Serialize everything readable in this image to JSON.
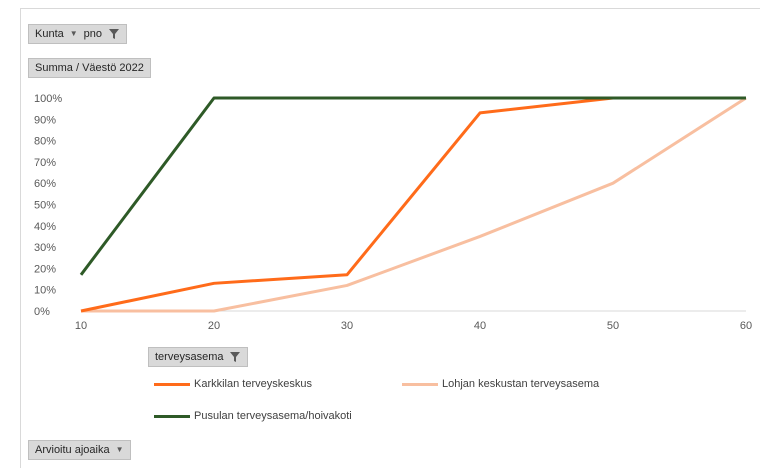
{
  "pivot": {
    "filter_row": {
      "field1": "Kunta",
      "field2": "pno"
    },
    "value_field": "Summa / Väestö 2022",
    "legend_field": "terveysasema",
    "axis_field": "Arvioitu ajoaika"
  },
  "chart_data": {
    "type": "line",
    "title": "",
    "xlabel": "",
    "ylabel": "",
    "x": [
      10,
      20,
      30,
      40,
      50,
      60
    ],
    "xticks": [
      "10",
      "20",
      "30",
      "40",
      "50",
      "60"
    ],
    "yticks": [
      "0%",
      "10%",
      "20%",
      "30%",
      "40%",
      "50%",
      "60%",
      "70%",
      "80%",
      "90%",
      "100%"
    ],
    "xlim": [
      10,
      60
    ],
    "ylim": [
      0,
      1
    ],
    "grid": false,
    "legend_position": "bottom",
    "series": [
      {
        "name": "Karkkilan terveyskeskus",
        "color": "#ff6b1a",
        "points": [
          [
            10,
            0.0
          ],
          [
            20,
            0.13
          ],
          [
            30,
            0.17
          ],
          [
            40,
            0.93
          ],
          [
            50,
            1.0
          ]
        ]
      },
      {
        "name": "Lohjan keskustan terveysasema",
        "color": "#f8bfa0",
        "points": [
          [
            10,
            0.0
          ],
          [
            20,
            0.0
          ],
          [
            30,
            0.12
          ],
          [
            40,
            0.35
          ],
          [
            50,
            0.6
          ],
          [
            60,
            1.0
          ]
        ]
      },
      {
        "name": "Pusulan terveysasema/hoivakoti",
        "color": "#2e5a27",
        "points": [
          [
            10,
            0.17
          ],
          [
            20,
            1.0
          ],
          [
            30,
            1.0
          ],
          [
            40,
            1.0
          ],
          [
            50,
            1.0
          ],
          [
            60,
            1.0
          ]
        ]
      }
    ]
  }
}
